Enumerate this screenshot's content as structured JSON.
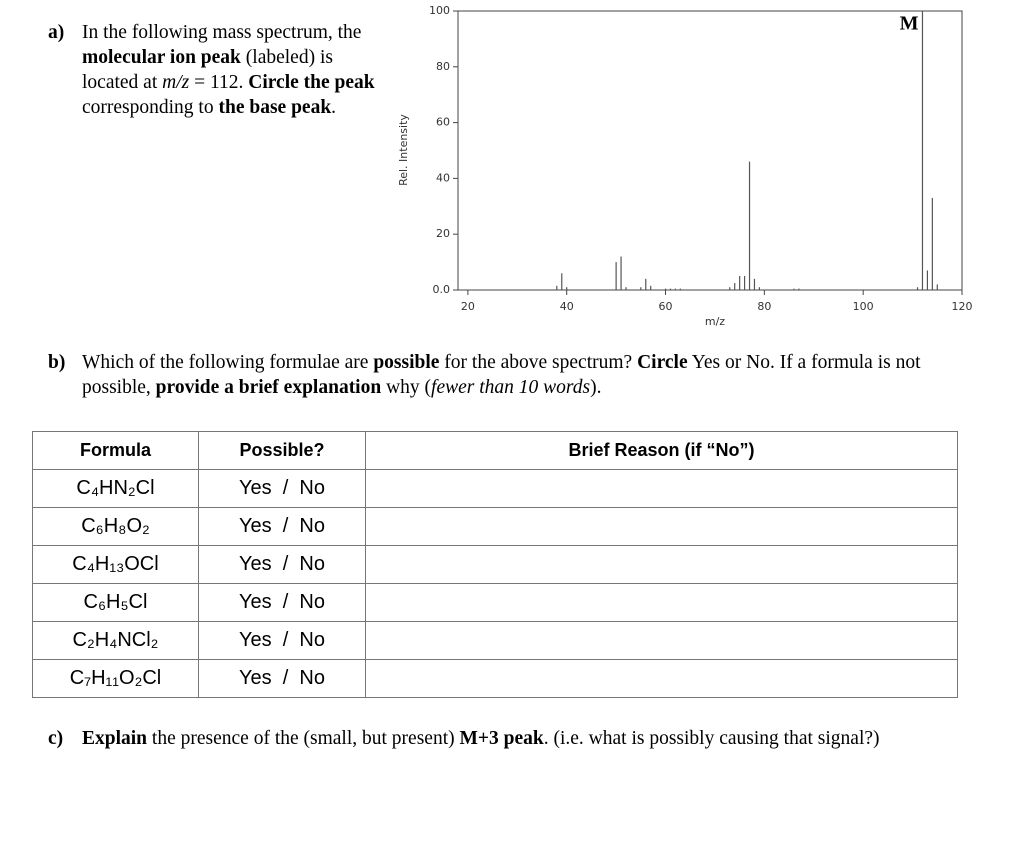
{
  "part_a": {
    "label": "a)",
    "text": [
      "In the following mass spectrum, the ",
      "molecular ion peak",
      " (labeled) is located at ",
      "m/z",
      " = 112. ",
      "Circle the peak",
      " corresponding to ",
      "the base peak",
      "."
    ]
  },
  "chart_data": {
    "type": "bar",
    "xlabel": "m/z",
    "ylabel": "Rel. Intensity",
    "x": [
      38,
      39,
      40,
      50,
      51,
      52,
      55,
      56,
      57,
      60,
      61,
      62,
      63,
      73,
      74,
      75,
      76,
      77,
      78,
      79,
      86,
      87,
      111,
      112,
      113,
      114,
      115
    ],
    "values": [
      1.5,
      6,
      1,
      10,
      12,
      1,
      1,
      4,
      1.5,
      0.5,
      0.5,
      0.5,
      0.5,
      1,
      2.5,
      5,
      5,
      46,
      4,
      1,
      0.5,
      0.5,
      1,
      100,
      7,
      33,
      2
    ],
    "color": "#555555",
    "xlim": [
      18,
      120
    ],
    "xticks": [
      20,
      40,
      60,
      80,
      100,
      120
    ],
    "ylim": [
      0,
      100
    ],
    "yticks": [
      {
        "value": 0,
        "label": "0.0"
      },
      20,
      40,
      60,
      80,
      100
    ],
    "annotations": [
      {
        "text": "M",
        "x": 112
      }
    ]
  },
  "part_b": {
    "label": "b)",
    "text": [
      "Which of the following formulae are ",
      "possible",
      " for the above spectrum? ",
      "Circle",
      " Yes or No. If a formula is not possible, ",
      "provide a brief explanation",
      " why (",
      "fewer than 10 words",
      ")."
    ]
  },
  "table": {
    "header": [
      "Formula",
      "Possible?",
      "Brief Reason (if “No”)"
    ],
    "rows": [
      [
        "C₄HN₂Cl",
        "Yes  /  No"
      ],
      [
        "C₆H₈O₂",
        "Yes  /  No"
      ],
      [
        "C₄H₁₃OCl",
        "Yes  /  No"
      ],
      [
        "C₆H₅Cl",
        "Yes  /  No"
      ],
      [
        "C₂H₄NCl₂",
        "Yes  /  No"
      ],
      [
        "C₇H₁₁O₂Cl",
        "Yes  /  No"
      ]
    ]
  },
  "part_c": {
    "label": "c)",
    "text": [
      "Explain",
      " the presence of the (small, but present) ",
      "M+3 peak",
      ". (i.e. what is possibly causing that signal?)"
    ]
  }
}
